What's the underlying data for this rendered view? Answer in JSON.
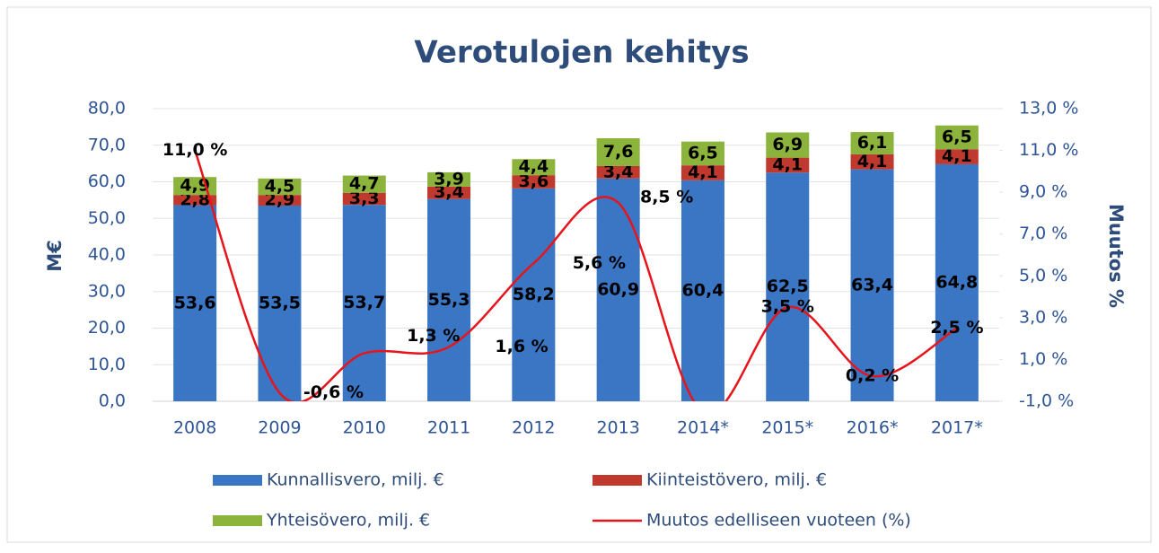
{
  "chart_data": {
    "type": "bar",
    "stacked": true,
    "title": "Verotulojen kehitys",
    "y_label": "M€",
    "y2_label": "Muutos %",
    "categories": [
      "2008",
      "2009",
      "2010",
      "2011",
      "2012",
      "2013",
      "2014*",
      "2015*",
      "2016*",
      "2017*"
    ],
    "series": [
      {
        "name": "Kunnallisvero, milj. €",
        "color": "#3a76c4",
        "values": [
          53.6,
          53.5,
          53.7,
          55.3,
          58.2,
          60.9,
          60.4,
          62.5,
          63.4,
          64.8
        ],
        "value_labels": [
          "53,6",
          "53,5",
          "53,7",
          "55,3",
          "58,2",
          "60,9",
          "60,4",
          "62,5",
          "63,4",
          "64,8"
        ]
      },
      {
        "name": "Kiinteistövero, milj. €",
        "color": "#c0392e",
        "values": [
          2.8,
          2.9,
          3.3,
          3.4,
          3.6,
          3.4,
          4.1,
          4.1,
          4.1,
          4.1
        ],
        "value_labels": [
          "2,8",
          "2,9",
          "3,3",
          "3,4",
          "3,6",
          "3,4",
          "4,1",
          "4,1",
          "4,1",
          "4,1"
        ]
      },
      {
        "name": "Yhteisövero, milj. €",
        "color": "#8cb43c",
        "values": [
          4.9,
          4.5,
          4.7,
          3.9,
          4.4,
          7.6,
          6.5,
          6.9,
          6.1,
          6.5
        ],
        "value_labels": [
          "4,9",
          "4,5",
          "4,7",
          "3,9",
          "4,4",
          "7,6",
          "6,5",
          "6,9",
          "6,1",
          "6,5"
        ]
      },
      {
        "name": "Muutos edelliseen vuoteen (%)",
        "type": "line",
        "axis": "y2",
        "color": "#e8141b",
        "values": [
          11.0,
          -0.6,
          1.3,
          1.6,
          5.6,
          8.5,
          -1.5,
          3.5,
          0.2,
          2.5
        ],
        "value_labels": [
          "11,0 %",
          "-0,6 %",
          "1,3 %",
          "1,6 %",
          "5,6 %",
          "8,5 %",
          null,
          "3,5 %",
          "0,2 %",
          "2,5 %"
        ]
      }
    ],
    "ylim": [
      0,
      80
    ],
    "yticks": [
      {
        "value": 0,
        "label": "0,0"
      },
      {
        "value": 10,
        "label": "10,0"
      },
      {
        "value": 20,
        "label": "20,0"
      },
      {
        "value": 30,
        "label": "30,0"
      },
      {
        "value": 40,
        "label": "40,0"
      },
      {
        "value": 50,
        "label": "50,0"
      },
      {
        "value": 60,
        "label": "60,0"
      },
      {
        "value": 70,
        "label": "70,0"
      },
      {
        "value": 80,
        "label": "80,0"
      }
    ],
    "y2lim": [
      -1,
      13
    ],
    "y2ticks": [
      {
        "value": -1,
        "label": "-1,0 %"
      },
      {
        "value": 1,
        "label": "1,0 %"
      },
      {
        "value": 3,
        "label": "3,0 %"
      },
      {
        "value": 5,
        "label": "5,0 %"
      },
      {
        "value": 7,
        "label": "7,0 %"
      },
      {
        "value": 9,
        "label": "9,0 %"
      },
      {
        "value": 11,
        "label": "11,0 %"
      },
      {
        "value": 13,
        "label": "13,0 %"
      }
    ],
    "grid": true
  }
}
